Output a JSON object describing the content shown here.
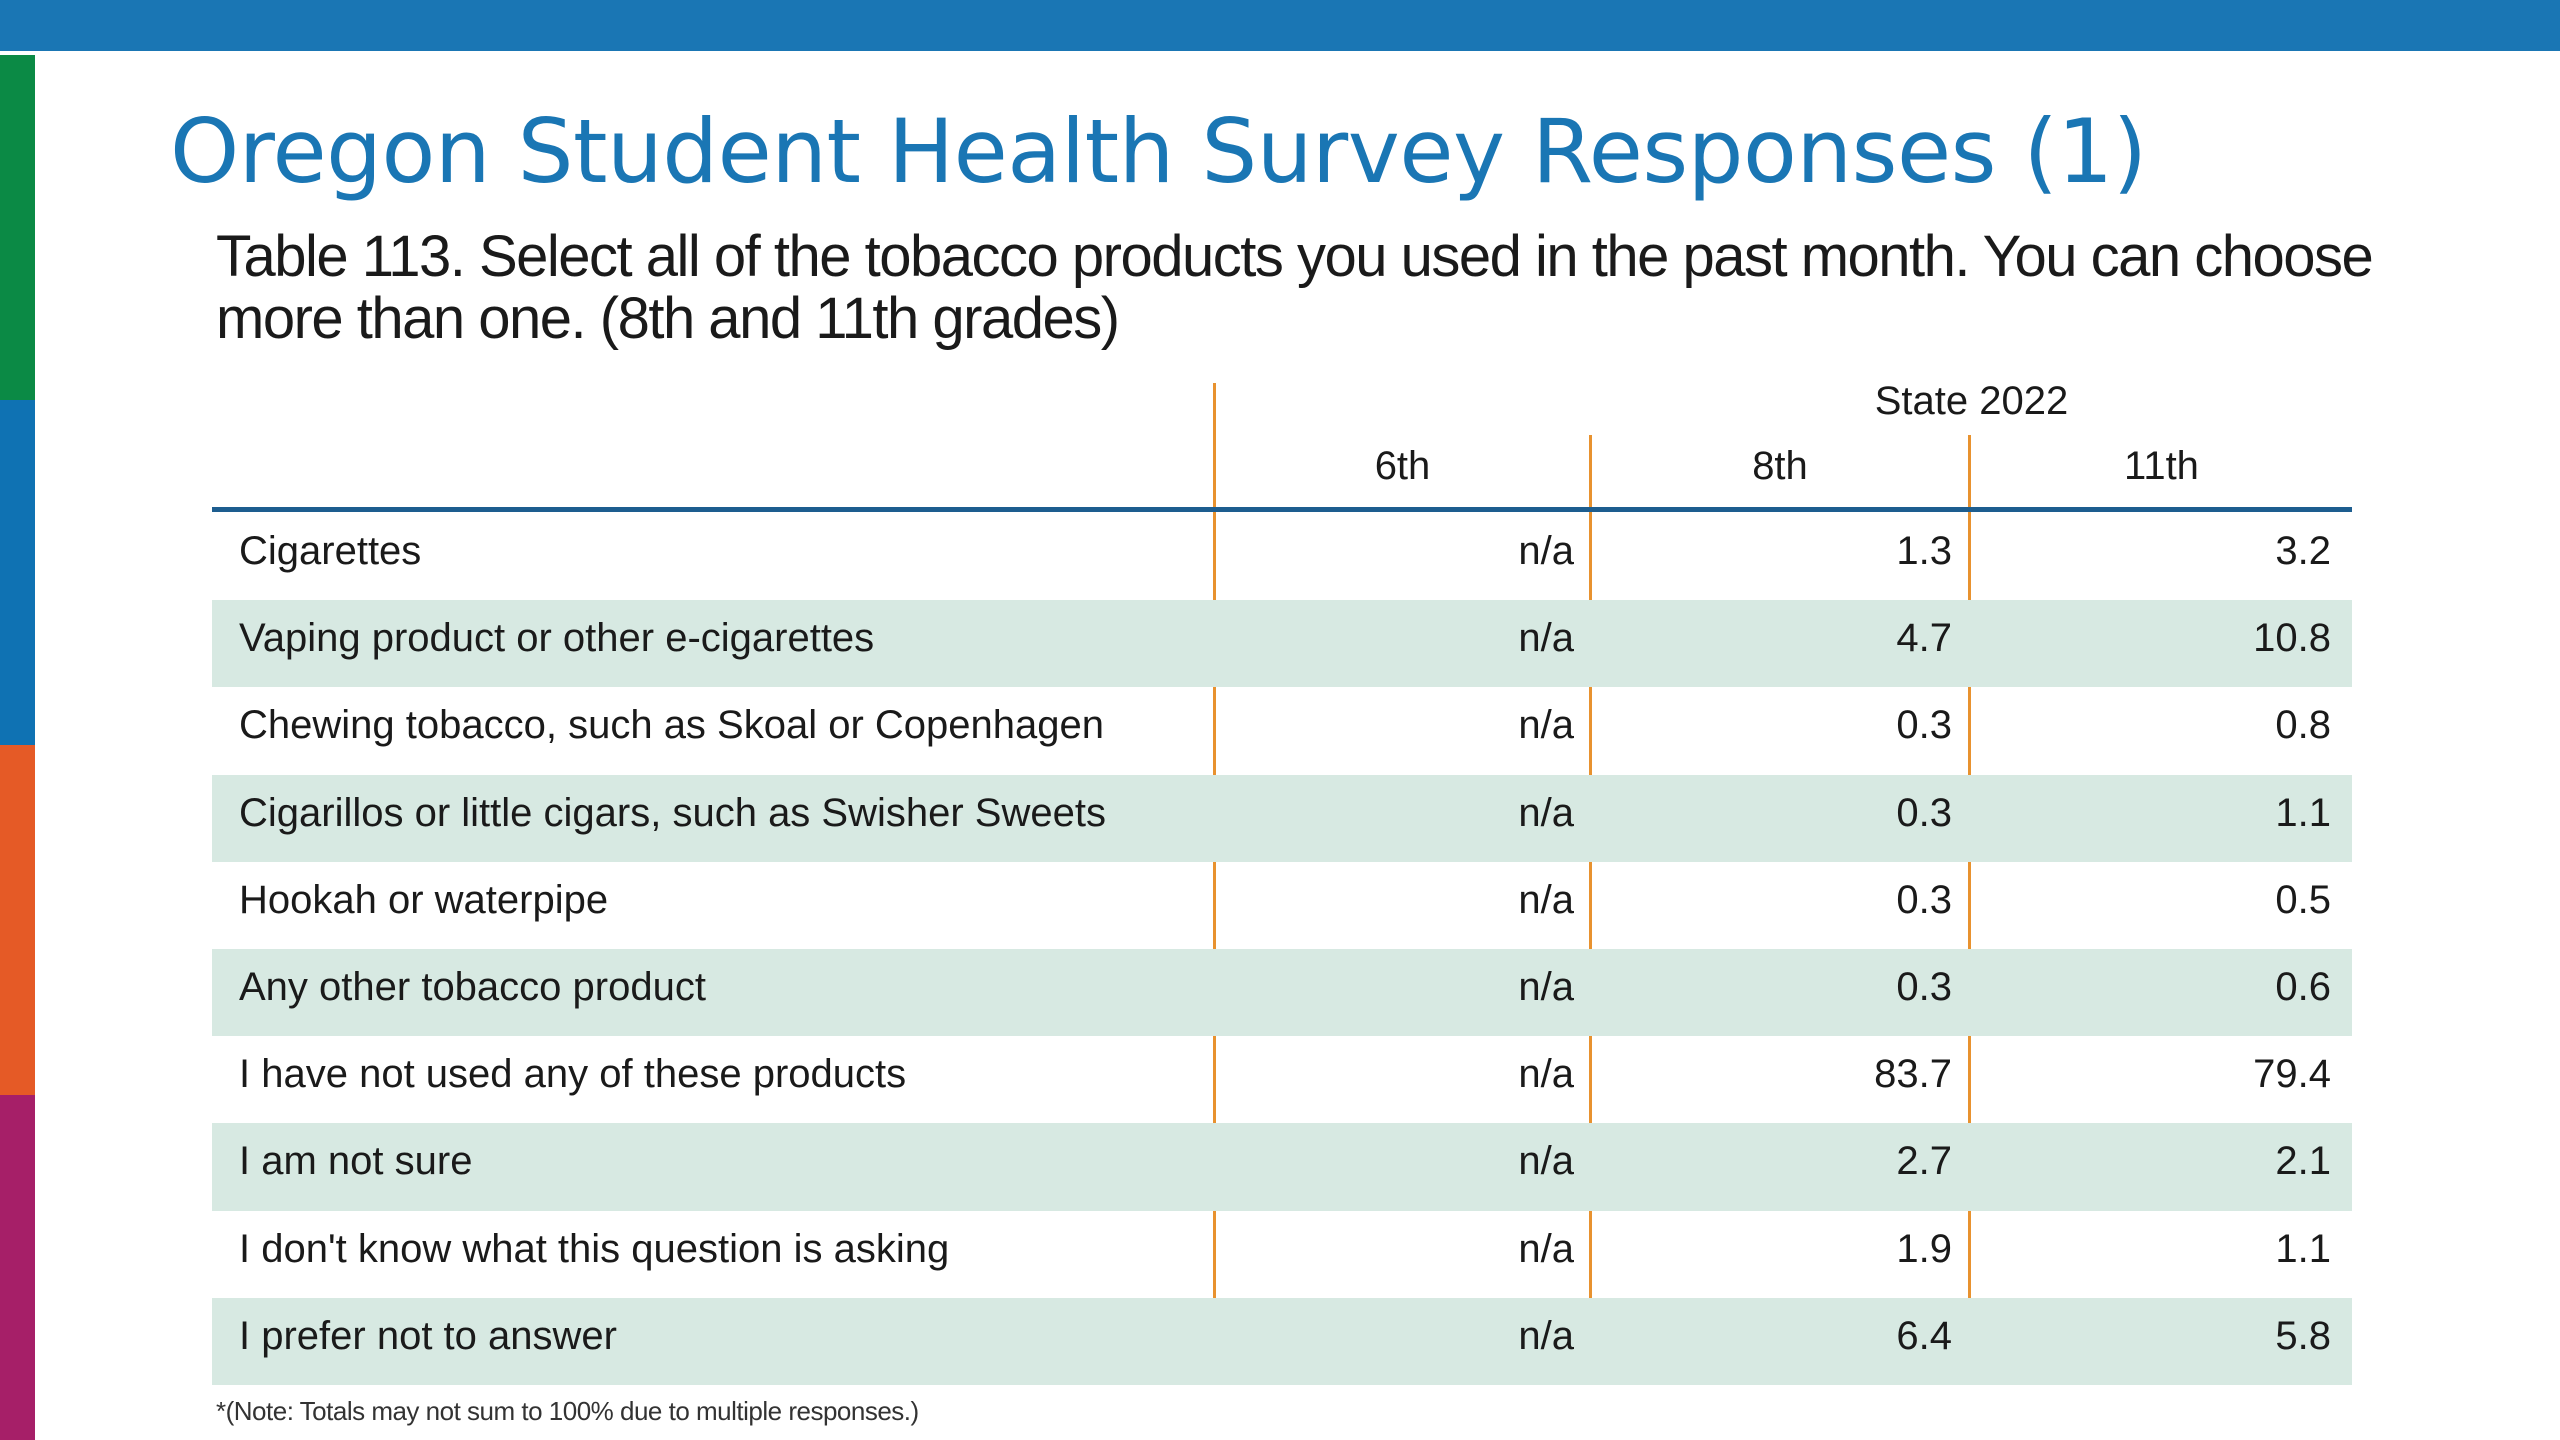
{
  "slide": {
    "title": "Oregon Student Health Survey Responses (1)",
    "caption": "Table 113. Select all of the tobacco products you used in the past month. You can choose more than one. (8th and 11th grades)",
    "footnote": "*(Note: Totals may not sum to 100% due to multiple responses.)"
  },
  "table": {
    "group_header": "State 2022",
    "columns": [
      "6th",
      "8th",
      "11th"
    ],
    "rows": [
      {
        "label": "Cigarettes",
        "v6": "n/a",
        "v8": "1.3",
        "v11": "3.2"
      },
      {
        "label": "Vaping product or other e-cigarettes",
        "v6": "n/a",
        "v8": "4.7",
        "v11": "10.8"
      },
      {
        "label": "Chewing tobacco, such as Skoal or Copenhagen",
        "v6": "n/a",
        "v8": "0.3",
        "v11": "0.8"
      },
      {
        "label": "Cigarillos or little cigars, such as Swisher Sweets",
        "v6": "n/a",
        "v8": "0.3",
        "v11": "1.1"
      },
      {
        "label": "Hookah or waterpipe",
        "v6": "n/a",
        "v8": "0.3",
        "v11": "0.5"
      },
      {
        "label": "Any other tobacco product",
        "v6": "n/a",
        "v8": "0.3",
        "v11": "0.6"
      },
      {
        "label": "I have not used any of these products",
        "v6": "n/a",
        "v8": "83.7",
        "v11": "79.4"
      },
      {
        "label": "I am not sure",
        "v6": "n/a",
        "v8": "2.7",
        "v11": "2.1"
      },
      {
        "label": "I don't know what this question is asking",
        "v6": "n/a",
        "v8": "1.9",
        "v11": "1.1"
      },
      {
        "label": "I prefer not to answer",
        "v6": "n/a",
        "v8": "6.4",
        "v11": "5.8"
      }
    ]
  },
  "colors": {
    "title": "#1a76b4",
    "top_bar": "#1a76b4",
    "stripes": [
      "#0b8a45",
      "#0f72b3",
      "#e55a26",
      "#a61f68"
    ],
    "row_shade": "#d7e9e2",
    "column_divider": "#e8922f",
    "header_rule": "#1d5d8f"
  }
}
